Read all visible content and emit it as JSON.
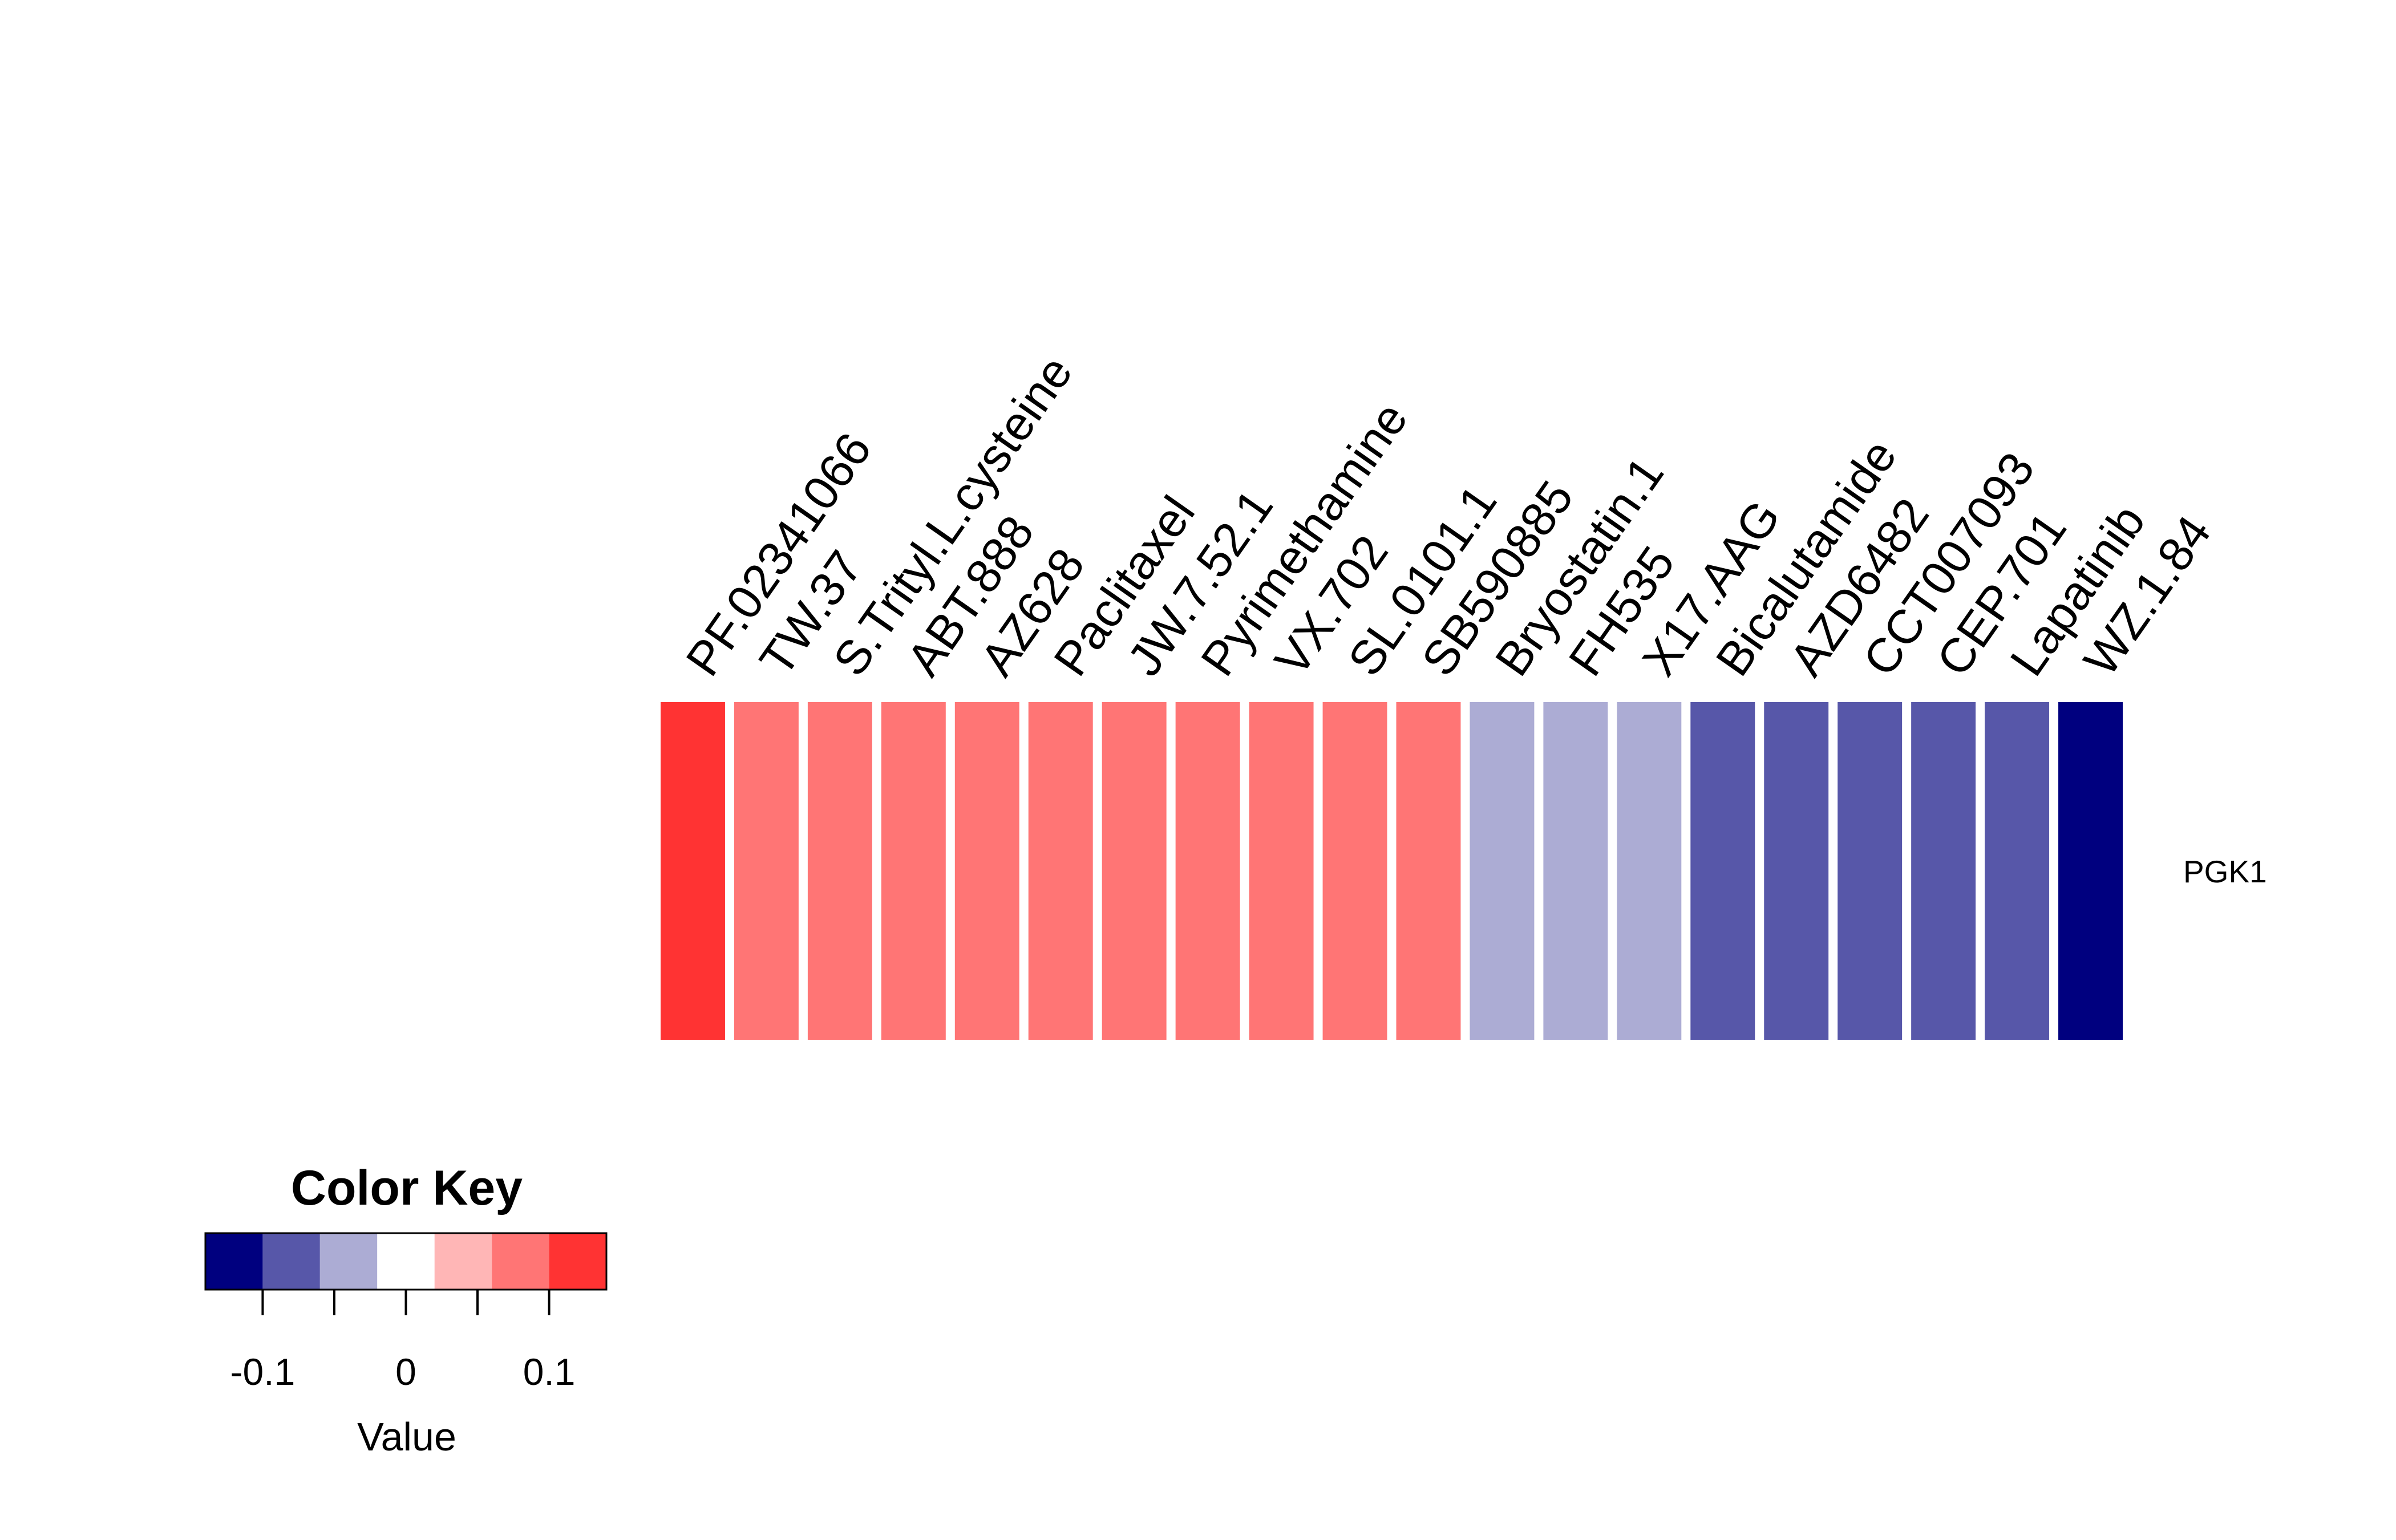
{
  "chart_data": [
    {
      "type": "heatmap",
      "rows": [
        "PGK1"
      ],
      "columns": [
        "PF.02341066",
        "TW.37",
        "S.Trityl.L.cysteine",
        "ABT.888",
        "AZ628",
        "Paclitaxel",
        "JW.7.52.1",
        "Pyrimethamine",
        "VX.702",
        "SL.0101.1",
        "SB590885",
        "Bryostatin.1",
        "FH535",
        "X17.AAG",
        "Bicalutamide",
        "AZD6482",
        "CCT007093",
        "CEP.701",
        "Lapatinib",
        "WZ.1.84"
      ],
      "values": [
        [
          0.13,
          0.09,
          0.09,
          0.09,
          0.09,
          0.09,
          0.09,
          0.09,
          0.09,
          0.09,
          0.09,
          -0.05,
          -0.05,
          -0.05,
          -0.09,
          -0.09,
          -0.09,
          -0.09,
          -0.09,
          -0.13
        ]
      ],
      "color_scale": {
        "breaks": [
          -0.14,
          -0.1,
          -0.06,
          -0.02,
          0.02,
          0.06,
          0.1,
          0.14
        ],
        "colors": [
          "#00007f",
          "#5757a9",
          "#acacd4",
          "#ffffff",
          "#ffb6b6",
          "#ff7575",
          "#ff3333"
        ]
      }
    },
    {
      "type": "legend",
      "title": "Color Key",
      "xlabel": "Value",
      "tick_labels": [
        "-0.1",
        "0",
        "0.1"
      ],
      "tick_values": [
        -0.1,
        0,
        0.1
      ],
      "minor_tick_values": [
        -0.1,
        -0.05,
        0,
        0.05,
        0.1
      ]
    }
  ]
}
